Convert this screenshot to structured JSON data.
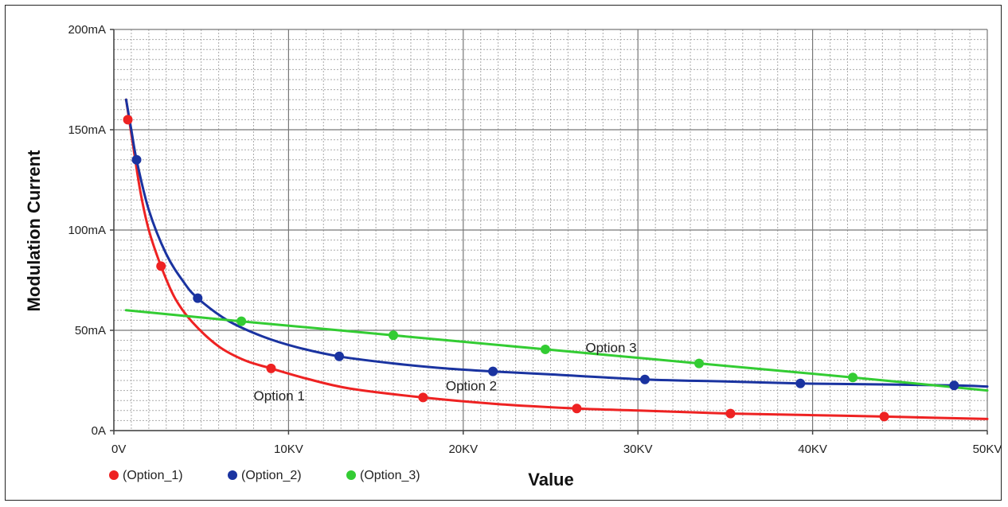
{
  "chart_data": {
    "type": "line",
    "title": "",
    "xlabel": "Value",
    "ylabel": "Modulation Current",
    "xlim": [
      0,
      50000
    ],
    "ylim": [
      0,
      200
    ],
    "x_unit": "V",
    "y_unit": "mA",
    "x_ticks": [
      0,
      10000,
      20000,
      30000,
      40000,
      50000
    ],
    "x_tick_labels": [
      "0V",
      "10KV",
      "20KV",
      "30KV",
      "40KV",
      "50KV"
    ],
    "y_ticks": [
      0,
      50,
      100,
      150,
      200
    ],
    "y_tick_labels": [
      "0A",
      "50mA",
      "100mA",
      "150mA",
      "200mA"
    ],
    "grid": true,
    "legend_position": "bottom-left",
    "series": [
      {
        "name": "(Option_1)",
        "label": "Option 1",
        "color": "#ee2222",
        "marker_x": [
          800,
          2700,
          9000,
          17700,
          26500,
          35300,
          44100
        ],
        "marker_y": [
          155,
          82,
          31,
          16.5,
          11,
          8.5,
          7
        ],
        "x": [
          700,
          1000,
          1500,
          2000,
          2700,
          3500,
          4500,
          6000,
          7500,
          9000,
          11000,
          13500,
          17700,
          22000,
          26500,
          30000,
          35300,
          40000,
          44100,
          50000
        ],
        "y": [
          165,
          148,
          120,
          100,
          82,
          66,
          54,
          42,
          35,
          31,
          26,
          21,
          16.5,
          13.2,
          11,
          10,
          8.5,
          7.7,
          7,
          5.8
        ]
      },
      {
        "name": "(Option_2)",
        "label": "Option 2",
        "color": "#1a33a0",
        "marker_x": [
          1300,
          4800,
          12900,
          21700,
          30400,
          39300,
          48100
        ],
        "marker_y": [
          135,
          66,
          37,
          29.5,
          25.5,
          23.5,
          22.5
        ],
        "x": [
          700,
          1000,
          1300,
          2000,
          3000,
          4000,
          4800,
          6500,
          8500,
          10500,
          12900,
          16000,
          19000,
          21700,
          25000,
          30400,
          35000,
          39300,
          44000,
          48100,
          50000
        ],
        "y": [
          165,
          150,
          135,
          110,
          88,
          74,
          66,
          55,
          47,
          41.5,
          37,
          33.5,
          31,
          29.5,
          28,
          25.5,
          24.5,
          23.5,
          23,
          22.5,
          22
        ]
      },
      {
        "name": "(Option_3)",
        "label": "Option 3",
        "color": "#33cc33",
        "marker_x": [
          7300,
          16000,
          24700,
          33500,
          42300
        ],
        "marker_y": [
          54.5,
          47.5,
          40.5,
          33.5,
          26.5
        ],
        "x": [
          700,
          7300,
          16000,
          24700,
          33500,
          42300,
          50000
        ],
        "y": [
          60,
          54.5,
          47.5,
          40.5,
          33.5,
          26.5,
          20
        ]
      }
    ],
    "annotations": [
      {
        "text": "Option 1",
        "x": 8000,
        "y": 15
      },
      {
        "text": "Option 2",
        "x": 19000,
        "y": 20
      },
      {
        "text": "Option 3",
        "x": 27000,
        "y": 39
      }
    ]
  }
}
